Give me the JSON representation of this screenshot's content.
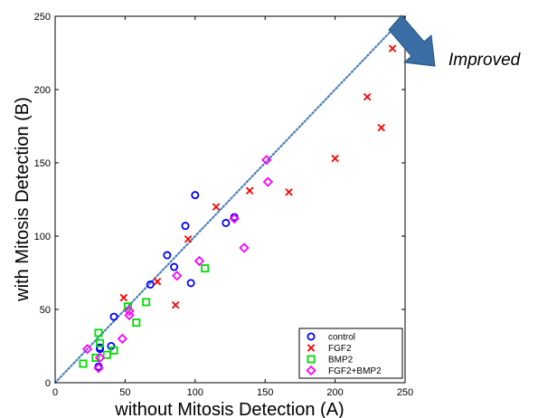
{
  "chart_data": {
    "type": "scatter",
    "xlabel": "without Mitosis Detection (A)",
    "ylabel": "with Mitosis Detection (B)",
    "xlim": [
      0,
      250
    ],
    "ylim": [
      0,
      250
    ],
    "xticks": [
      0,
      50,
      100,
      150,
      200,
      250
    ],
    "yticks": [
      0,
      50,
      100,
      150,
      200,
      250
    ],
    "grid": false,
    "legend_position": "bottom-right",
    "reference_line": {
      "style": "dotted",
      "from": [
        0,
        0
      ],
      "to": [
        250,
        250
      ],
      "color": "#4a7ebb"
    },
    "annotation": {
      "text": "Improved",
      "arrow_color": "#3a6ea5"
    },
    "series": [
      {
        "name": "control",
        "marker": "circle",
        "color": "#0000ff",
        "points": [
          [
            100,
            128
          ],
          [
            93,
            107
          ],
          [
            122,
            109
          ],
          [
            128,
            113
          ],
          [
            80,
            87
          ],
          [
            85,
            79
          ],
          [
            97,
            68
          ],
          [
            68,
            67
          ],
          [
            42,
            45
          ],
          [
            40,
            25
          ],
          [
            32,
            24
          ],
          [
            31,
            11
          ],
          [
            32,
            23
          ]
        ]
      },
      {
        "name": "FGF2",
        "marker": "x",
        "color": "#ff0000",
        "points": [
          [
            241,
            228
          ],
          [
            223,
            195
          ],
          [
            233,
            174
          ],
          [
            200,
            153
          ],
          [
            167,
            130
          ],
          [
            139,
            131
          ],
          [
            115,
            120
          ],
          [
            95,
            98
          ],
          [
            73,
            69
          ],
          [
            86,
            53
          ],
          [
            49,
            58
          ]
        ]
      },
      {
        "name": "BMP2",
        "marker": "square",
        "color": "#00dd00",
        "points": [
          [
            107,
            78
          ],
          [
            65,
            55
          ],
          [
            52,
            52
          ],
          [
            58,
            41
          ],
          [
            31,
            34
          ],
          [
            32,
            27
          ],
          [
            42,
            22
          ],
          [
            37,
            19
          ],
          [
            29,
            17
          ],
          [
            20,
            13
          ]
        ]
      },
      {
        "name": "FGF2+BMP2",
        "marker": "diamond",
        "color": "#ff00ff",
        "points": [
          [
            151,
            152
          ],
          [
            152,
            137
          ],
          [
            128,
            112
          ],
          [
            135,
            92
          ],
          [
            103,
            83
          ],
          [
            87,
            73
          ],
          [
            53,
            49
          ],
          [
            53,
            46
          ],
          [
            48,
            30
          ],
          [
            23,
            23
          ],
          [
            32,
            17
          ],
          [
            31,
            10
          ]
        ]
      }
    ]
  }
}
